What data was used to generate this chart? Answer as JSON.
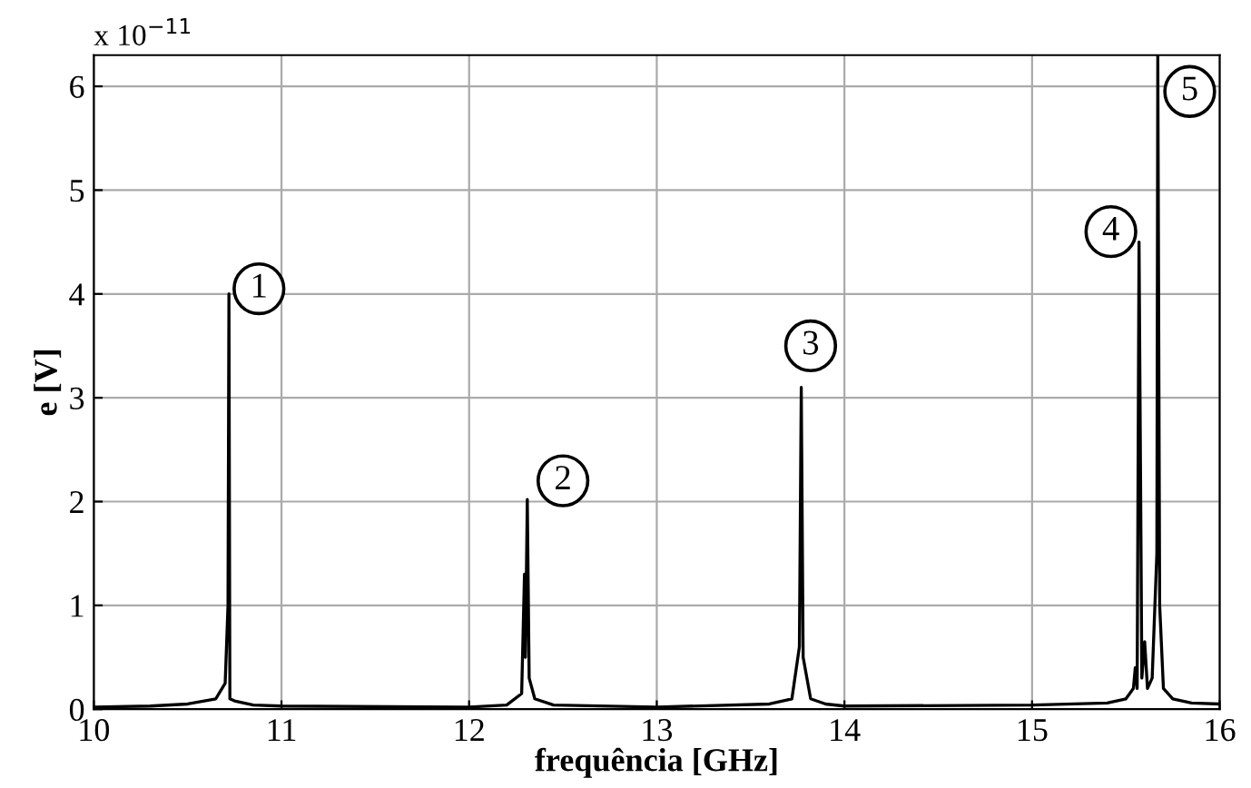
{
  "chart_data": {
    "type": "line",
    "xlabel": "frequência [GHz]",
    "ylabel": "e [V]",
    "x": [
      10.0,
      10.3,
      10.5,
      10.65,
      10.7,
      10.715,
      10.72,
      10.725,
      10.75,
      10.85,
      11.0,
      12.0,
      12.2,
      12.28,
      12.295,
      12.3,
      12.31,
      12.32,
      12.35,
      12.45,
      13.0,
      13.6,
      13.72,
      13.76,
      13.77,
      13.78,
      13.82,
      13.9,
      14.0,
      15.0,
      15.4,
      15.5,
      15.54,
      15.55,
      15.56,
      15.57,
      15.585,
      15.6,
      15.615,
      15.64,
      15.665,
      15.67,
      15.68,
      15.7,
      15.75,
      15.85,
      16.0
    ],
    "series": [
      {
        "color": "#000000",
        "values": [
          0.02,
          0.03,
          0.05,
          0.1,
          0.25,
          1.0,
          4.0,
          0.1,
          0.08,
          0.04,
          0.03,
          0.02,
          0.04,
          0.15,
          1.3,
          0.5,
          2.02,
          0.3,
          0.1,
          0.04,
          0.02,
          0.05,
          0.1,
          0.6,
          3.1,
          0.5,
          0.1,
          0.05,
          0.03,
          0.04,
          0.06,
          0.1,
          0.2,
          0.4,
          0.2,
          4.5,
          0.3,
          0.65,
          0.2,
          0.3,
          1.5,
          6.3,
          1.0,
          0.2,
          0.1,
          0.06,
          0.05
        ]
      }
    ],
    "xlim": [
      10,
      16
    ],
    "ylim": [
      0,
      6.3
    ],
    "xticks": [
      10,
      11,
      12,
      13,
      14,
      15,
      16
    ],
    "yticks": [
      0,
      1,
      2,
      3,
      4,
      5,
      6
    ],
    "grid": true,
    "legend": false,
    "marker": "none",
    "line_style": "solid",
    "annotations": [
      "x 10$^{−11}$",
      {
        "text": "1",
        "x": 10.88,
        "y": 4.05
      },
      {
        "text": "2",
        "x": 12.5,
        "y": 2.2
      },
      {
        "text": "3",
        "x": 13.82,
        "y": 3.5
      },
      {
        "text": "4",
        "x": 15.42,
        "y": 4.6
      },
      {
        "text": "5",
        "x": 15.84,
        "y": 5.95
      }
    ]
  }
}
